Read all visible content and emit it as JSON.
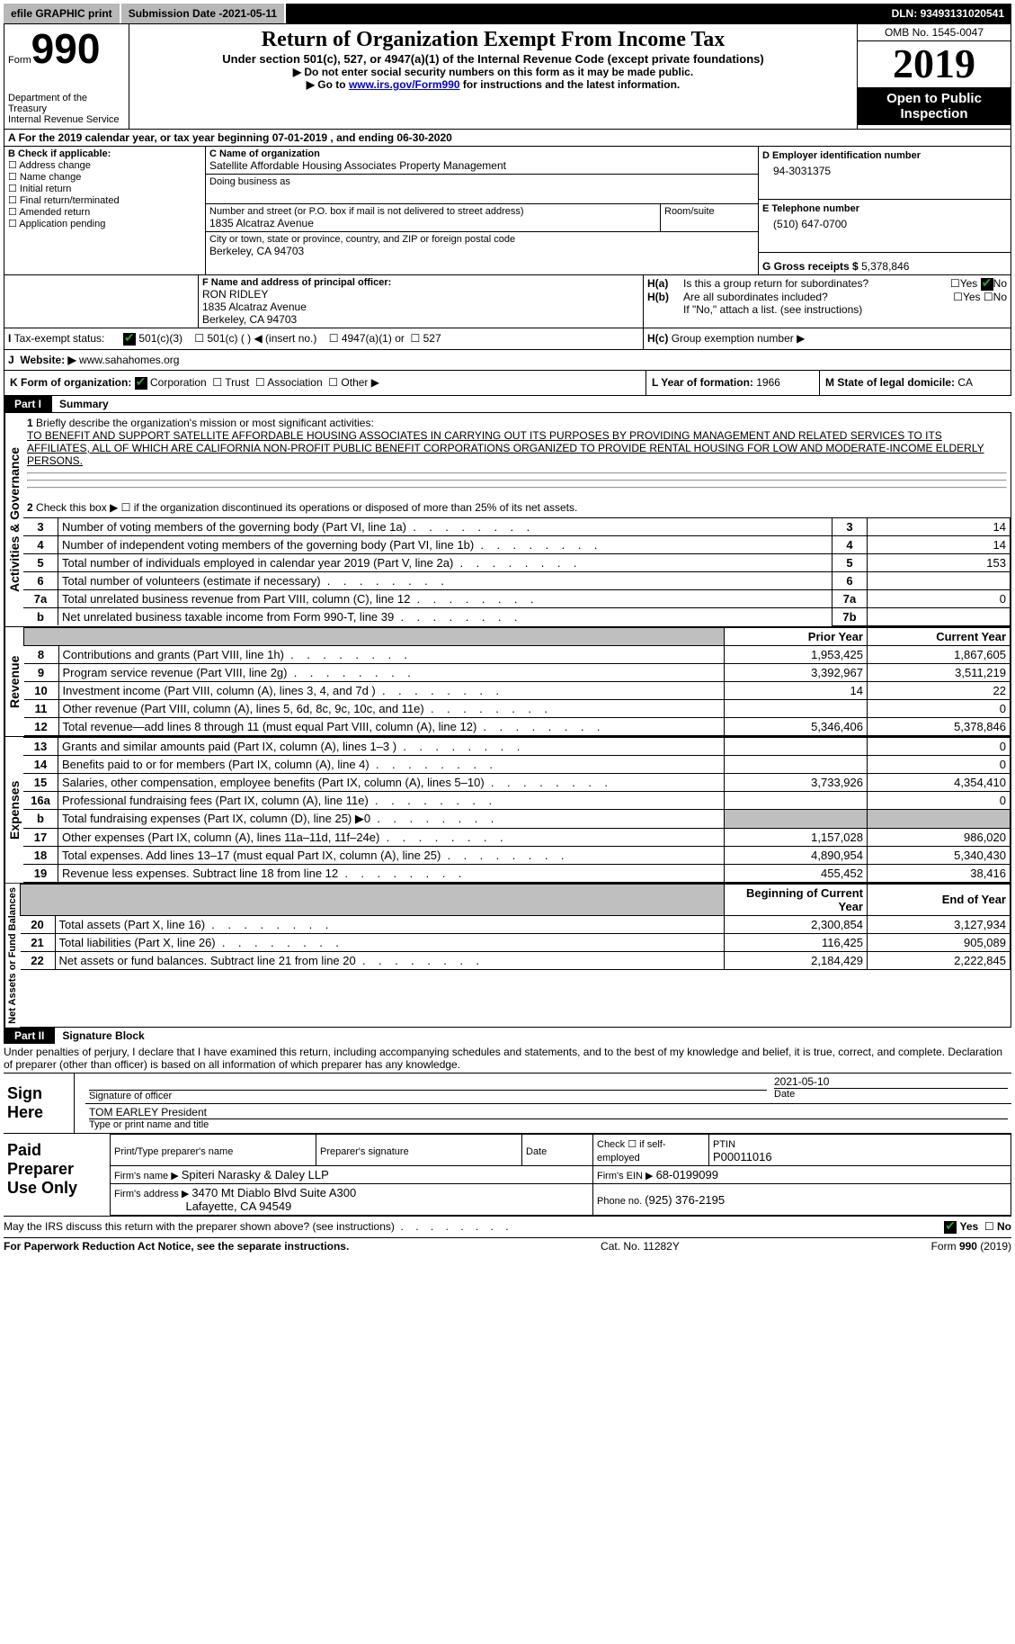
{
  "topbar": {
    "efile": "efile GRAPHIC print",
    "subdate_label": "Submission Date - ",
    "subdate": "2021-05-11",
    "dln_label": "DLN: ",
    "dln": "93493131020541"
  },
  "formhead": {
    "form_word": "Form",
    "form_num": "990",
    "dept1": "Department of the Treasury",
    "dept2": "Internal Revenue Service",
    "title": "Return of Organization Exempt From Income Tax",
    "sub1": "Under section 501(c), 527, or 4947(a)(1) of the Internal Revenue Code (except private foundations)",
    "sub2": "▶ Do not enter social security numbers on this form as it may be made public.",
    "sub3_pre": "▶ Go to ",
    "sub3_link": "www.irs.gov/Form990",
    "sub3_post": " for instructions and the latest information.",
    "omb": "OMB No. 1545-0047",
    "year": "2019",
    "open": "Open to Public Inspection"
  },
  "period": {
    "prefix": "For the 2019 calendar year, or tax year beginning ",
    "start": "07-01-2019",
    "mid": " , and ending ",
    "end": "06-30-2020"
  },
  "box_b_label": "B Check if applicable:",
  "box_b_items": [
    "Address change",
    "Name change",
    "Initial return",
    "Final return/terminated",
    "Amended return",
    "Application pending"
  ],
  "box_c": {
    "label": "C Name of organization",
    "name": "Satellite Affordable Housing Associates Property Management",
    "dba_label": "Doing business as",
    "addr_label": "Number and street (or P.O. box if mail is not delivered to street address)",
    "room_label": "Room/suite",
    "addr": "1835 Alcatraz Avenue",
    "city_label": "City or town, state or province, country, and ZIP or foreign postal code",
    "city": "Berkeley, CA  94703"
  },
  "box_d": {
    "label": "D Employer identification number",
    "value": "94-3031375"
  },
  "box_e": {
    "label": "E Telephone number",
    "value": "(510) 647-0700"
  },
  "box_g": {
    "label": "G Gross receipts $ ",
    "value": "5,378,846"
  },
  "box_f": {
    "label": "F  Name and address of principal officer:",
    "name": "RON RIDLEY",
    "addr": "1835 Alcatraz Avenue",
    "city": "Berkeley, CA  94703"
  },
  "box_h": {
    "a_label": "Is this a group return for subordinates?",
    "a_yes": "Yes",
    "a_no": "No",
    "b_label": "Are all subordinates included?",
    "note": "If \"No,\" attach a list. (see instructions)",
    "c_label": "Group exemption number ▶"
  },
  "tax_status": {
    "label": "Tax-exempt status:",
    "o1": "501(c)(3)",
    "o2": "501(c) (  ) ◀ (insert no.)",
    "o3": "4947(a)(1) or",
    "o4": "527"
  },
  "website": {
    "label": "Website: ▶",
    "value": "www.sahahomes.org"
  },
  "k_line": {
    "label": "K Form of organization:",
    "o1": "Corporation",
    "o2": "Trust",
    "o3": "Association",
    "o4": "Other ▶"
  },
  "l_line": {
    "label": "L Year of formation: ",
    "value": "1966"
  },
  "m_line": {
    "label": "M State of legal domicile: ",
    "value": "CA"
  },
  "part1": {
    "tab": "Part I",
    "title": "Summary",
    "l1_label": "Briefly describe the organization's mission or most significant activities:",
    "l1_text": "TO BENEFIT AND SUPPORT SATELLITE AFFORDABLE HOUSING ASSOCIATES IN CARRYING OUT ITS PURPOSES BY PROVIDING MANAGEMENT AND RELATED SERVICES TO ITS AFFILIATES, ALL OF WHICH ARE CALIFORNIA NON-PROFIT PUBLIC BENEFIT CORPORATIONS ORGANIZED TO PROVIDE RENTAL HOUSING FOR LOW AND MODERATE-INCOME ELDERLY PERSONS.",
    "l2": "Check this box ▶ ☐  if the organization discontinued its operations or disposed of more than 25% of its net assets."
  },
  "sideA": "Activities & Governance",
  "sideR": "Revenue",
  "sideE": "Expenses",
  "sideN": "Net Assets or Fund Balances",
  "gov_rows": [
    {
      "n": "3",
      "label": "Number of voting members of the governing body (Part VI, line 1a)",
      "box": "3",
      "val": "14"
    },
    {
      "n": "4",
      "label": "Number of independent voting members of the governing body (Part VI, line 1b)",
      "box": "4",
      "val": "14"
    },
    {
      "n": "5",
      "label": "Total number of individuals employed in calendar year 2019 (Part V, line 2a)",
      "box": "5",
      "val": "153"
    },
    {
      "n": "6",
      "label": "Total number of volunteers (estimate if necessary)",
      "box": "6",
      "val": ""
    },
    {
      "n": "7a",
      "label": "Total unrelated business revenue from Part VIII, column (C), line 12",
      "box": "7a",
      "val": "0"
    },
    {
      "n": "b",
      "label": "Net unrelated business taxable income from Form 990-T, line 39",
      "box": "7b",
      "val": ""
    }
  ],
  "col_headers": {
    "prior": "Prior Year",
    "current": "Current Year",
    "begin": "Beginning of Current Year",
    "end": "End of Year"
  },
  "rev_rows": [
    {
      "n": "8",
      "label": "Contributions and grants (Part VIII, line 1h)",
      "p": "1,953,425",
      "c": "1,867,605"
    },
    {
      "n": "9",
      "label": "Program service revenue (Part VIII, line 2g)",
      "p": "3,392,967",
      "c": "3,511,219"
    },
    {
      "n": "10",
      "label": "Investment income (Part VIII, column (A), lines 3, 4, and 7d )",
      "p": "14",
      "c": "22"
    },
    {
      "n": "11",
      "label": "Other revenue (Part VIII, column (A), lines 5, 6d, 8c, 9c, 10c, and 11e)",
      "p": "",
      "c": "0"
    },
    {
      "n": "12",
      "label": "Total revenue—add lines 8 through 11 (must equal Part VIII, column (A), line 12)",
      "p": "5,346,406",
      "c": "5,378,846"
    }
  ],
  "exp_rows": [
    {
      "n": "13",
      "label": "Grants and similar amounts paid (Part IX, column (A), lines 1–3 )",
      "p": "",
      "c": "0"
    },
    {
      "n": "14",
      "label": "Benefits paid to or for members (Part IX, column (A), line 4)",
      "p": "",
      "c": "0"
    },
    {
      "n": "15",
      "label": "Salaries, other compensation, employee benefits (Part IX, column (A), lines 5–10)",
      "p": "3,733,926",
      "c": "4,354,410"
    },
    {
      "n": "16a",
      "label": "Professional fundraising fees (Part IX, column (A), line 11e)",
      "p": "",
      "c": "0"
    },
    {
      "n": "b",
      "label": "Total fundraising expenses (Part IX, column (D), line 25) ▶0",
      "p": "SHADE",
      "c": "SHADE"
    },
    {
      "n": "17",
      "label": "Other expenses (Part IX, column (A), lines 11a–11d, 11f–24e)",
      "p": "1,157,028",
      "c": "986,020"
    },
    {
      "n": "18",
      "label": "Total expenses. Add lines 13–17 (must equal Part IX, column (A), line 25)",
      "p": "4,890,954",
      "c": "5,340,430"
    },
    {
      "n": "19",
      "label": "Revenue less expenses. Subtract line 18 from line 12",
      "p": "455,452",
      "c": "38,416"
    }
  ],
  "net_rows": [
    {
      "n": "20",
      "label": "Total assets (Part X, line 16)",
      "p": "2,300,854",
      "c": "3,127,934"
    },
    {
      "n": "21",
      "label": "Total liabilities (Part X, line 26)",
      "p": "116,425",
      "c": "905,089"
    },
    {
      "n": "22",
      "label": "Net assets or fund balances. Subtract line 21 from line 20",
      "p": "2,184,429",
      "c": "2,222,845"
    }
  ],
  "part2": {
    "tab": "Part II",
    "title": "Signature Block",
    "decl": "Under penalties of perjury, I declare that I have examined this return, including accompanying schedules and statements, and to the best of my knowledge and belief, it is true, correct, and complete. Declaration of preparer (other than officer) is based on all information of which preparer has any knowledge."
  },
  "sign": {
    "here": "Sign Here",
    "sig_label": "Signature of officer",
    "date_label": "Date",
    "date": "2021-05-10",
    "name": "TOM EARLEY  President",
    "name_label": "Type or print name and title"
  },
  "paid": {
    "label": "Paid Preparer Use Only",
    "pt_label": "Print/Type preparer's name",
    "ps_label": "Preparer's signature",
    "d_label": "Date",
    "check_label": "Check ☐ if self-employed",
    "ptin_label": "PTIN",
    "ptin": "P00011016",
    "firm_name_label": "Firm's name    ▶ ",
    "firm_name": "Spiteri Narasky & Daley LLP",
    "firm_ein_label": "Firm's EIN ▶ ",
    "firm_ein": "68-0199099",
    "firm_addr_label": "Firm's address ▶ ",
    "firm_addr1": "3470 Mt Diablo Blvd Suite A300",
    "firm_addr2": "Lafayette, CA  94549",
    "phone_label": "Phone no. ",
    "phone": "(925) 376-2195"
  },
  "footer": {
    "discuss": "May the IRS discuss this return with the preparer shown above? (see instructions)",
    "yes": "Yes",
    "no": "No",
    "pra": "For Paperwork Reduction Act Notice, see the separate instructions.",
    "cat": "Cat. No. 11282Y",
    "form": "Form 990 (2019)"
  }
}
